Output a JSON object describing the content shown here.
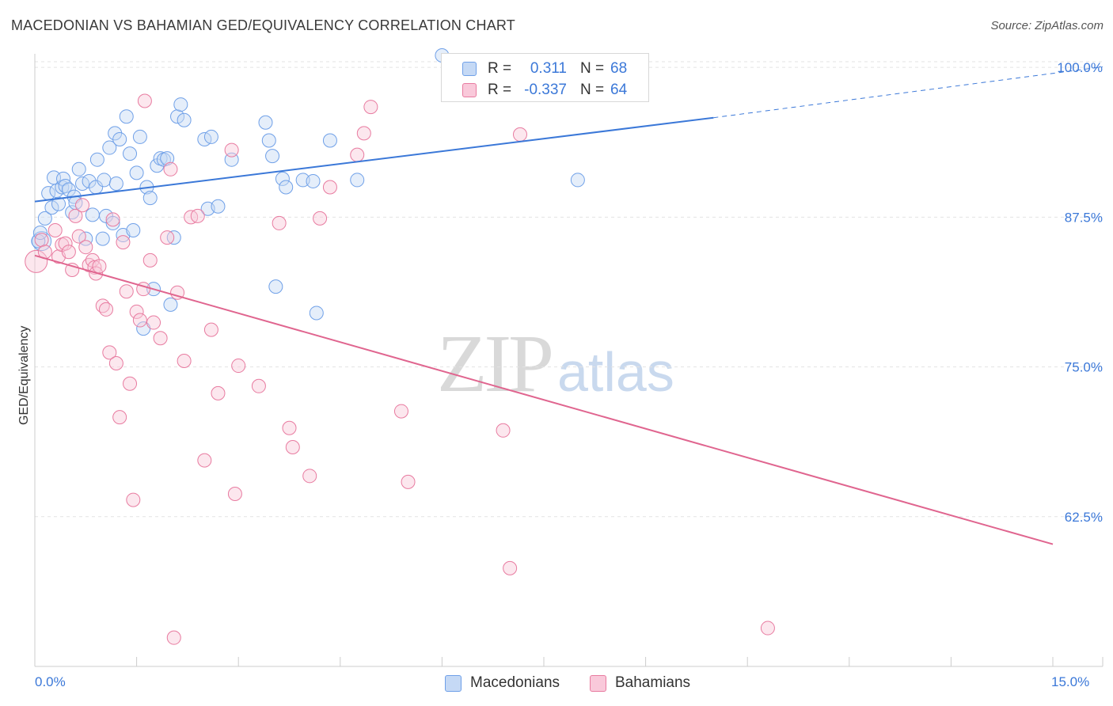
{
  "title": "MACEDONIAN VS BAHAMIAN GED/EQUIVALENCY CORRELATION CHART",
  "source": "Source: ZipAtlas.com",
  "watermark": {
    "zip": "ZIP",
    "atlas": "atlas"
  },
  "legend": {
    "rows": [
      {
        "r_label": "R =",
        "r_value": "0.311",
        "n_label": "N =",
        "n_value": "68",
        "color": "#6fa0e8",
        "fill": "#c5d9f5"
      },
      {
        "r_label": "R =",
        "r_value": "-0.337",
        "n_label": "N =",
        "n_value": "64",
        "color": "#e87ba0",
        "fill": "#f9c9da"
      }
    ]
  },
  "bottom_legend": [
    {
      "label": "Macedonians",
      "color": "#6fa0e8",
      "fill": "#c5d9f5"
    },
    {
      "label": "Bahamians",
      "color": "#e87ba0",
      "fill": "#f9c9da"
    }
  ],
  "chart_data": {
    "type": "scatter",
    "title": "MACEDONIAN VS BAHAMIAN GED/EQUIVALENCY CORRELATION CHART",
    "xlabel": "",
    "ylabel": "GED/Equivalency",
    "xlim": [
      0,
      15
    ],
    "ylim": [
      50,
      101
    ],
    "x_tick_labels": [
      "0.0%",
      "15.0%"
    ],
    "y_ticks": [
      62.5,
      75.0,
      87.5,
      100.0
    ],
    "y_tick_labels": [
      "62.5%",
      "75.0%",
      "87.5%",
      "100.0%"
    ],
    "grid": true,
    "colors": {
      "macedonians": "#3b78d8",
      "bahamians": "#e0658f",
      "tick_text": "#3b78d8"
    },
    "series": [
      {
        "name": "Macedonians",
        "trend": {
          "x0": 0,
          "y0": 88.8,
          "x1": 10.0,
          "y1": 95.8,
          "dashed_to_x": 15.0,
          "dashed_to_y": 99.5
        },
        "points": [
          [
            0.1,
            85.5
          ],
          [
            0.15,
            87.4
          ],
          [
            0.2,
            89.5
          ],
          [
            0.25,
            88.3
          ],
          [
            0.28,
            90.8
          ],
          [
            0.32,
            89.7
          ],
          [
            0.35,
            88.6
          ],
          [
            0.4,
            90.0
          ],
          [
            0.42,
            90.7
          ],
          [
            0.45,
            90.1
          ],
          [
            0.5,
            89.8
          ],
          [
            0.55,
            87.9
          ],
          [
            0.58,
            89.2
          ],
          [
            0.6,
            88.7
          ],
          [
            0.65,
            91.5
          ],
          [
            0.7,
            90.3
          ],
          [
            0.75,
            85.7
          ],
          [
            0.8,
            90.5
          ],
          [
            0.85,
            87.7
          ],
          [
            0.9,
            90.0
          ],
          [
            0.92,
            92.3
          ],
          [
            1.0,
            85.7
          ],
          [
            1.02,
            90.6
          ],
          [
            1.05,
            87.6
          ],
          [
            1.1,
            93.3
          ],
          [
            1.15,
            87.0
          ],
          [
            1.18,
            94.5
          ],
          [
            1.2,
            90.3
          ],
          [
            1.25,
            94.0
          ],
          [
            1.3,
            86.0
          ],
          [
            1.35,
            95.9
          ],
          [
            1.4,
            92.8
          ],
          [
            1.45,
            86.4
          ],
          [
            1.5,
            91.2
          ],
          [
            1.55,
            94.2
          ],
          [
            1.6,
            78.2
          ],
          [
            1.65,
            90.0
          ],
          [
            1.7,
            89.1
          ],
          [
            1.75,
            81.5
          ],
          [
            1.8,
            91.8
          ],
          [
            1.85,
            92.4
          ],
          [
            1.9,
            92.3
          ],
          [
            2.0,
            80.2
          ],
          [
            2.05,
            85.8
          ],
          [
            2.1,
            95.9
          ],
          [
            2.15,
            96.9
          ],
          [
            2.2,
            95.6
          ],
          [
            2.5,
            94.0
          ],
          [
            2.55,
            88.2
          ],
          [
            2.6,
            94.2
          ],
          [
            2.7,
            88.4
          ],
          [
            2.9,
            92.3
          ],
          [
            3.4,
            95.4
          ],
          [
            3.45,
            93.9
          ],
          [
            3.5,
            92.6
          ],
          [
            3.55,
            81.7
          ],
          [
            3.65,
            90.7
          ],
          [
            3.7,
            90.0
          ],
          [
            3.95,
            90.6
          ],
          [
            4.15,
            79.5
          ],
          [
            4.1,
            90.5
          ],
          [
            4.35,
            93.9
          ],
          [
            4.75,
            90.6
          ],
          [
            8.0,
            90.6
          ],
          [
            6.0,
            101.0
          ],
          [
            0.05,
            85.5
          ],
          [
            0.08,
            86.2
          ],
          [
            1.95,
            92.4
          ]
        ]
      },
      {
        "name": "Bahamians",
        "trend": {
          "x0": 0,
          "y0": 84.3,
          "x1": 15.0,
          "y1": 60.2
        },
        "points": [
          [
            0.02,
            83.8
          ],
          [
            0.1,
            85.6
          ],
          [
            0.15,
            84.6
          ],
          [
            0.3,
            86.4
          ],
          [
            0.35,
            84.2
          ],
          [
            0.4,
            85.2
          ],
          [
            0.45,
            85.3
          ],
          [
            0.5,
            84.6
          ],
          [
            0.55,
            83.1
          ],
          [
            0.6,
            87.6
          ],
          [
            0.65,
            85.9
          ],
          [
            0.7,
            88.5
          ],
          [
            0.75,
            85.0
          ],
          [
            0.8,
            83.5
          ],
          [
            0.85,
            83.9
          ],
          [
            0.88,
            83.3
          ],
          [
            0.9,
            82.8
          ],
          [
            0.95,
            83.4
          ],
          [
            1.0,
            80.1
          ],
          [
            1.05,
            79.8
          ],
          [
            1.1,
            76.2
          ],
          [
            1.15,
            87.3
          ],
          [
            1.2,
            75.3
          ],
          [
            1.25,
            70.8
          ],
          [
            1.3,
            85.4
          ],
          [
            1.35,
            81.3
          ],
          [
            1.4,
            73.6
          ],
          [
            1.45,
            63.9
          ],
          [
            1.5,
            79.6
          ],
          [
            1.55,
            78.9
          ],
          [
            1.6,
            81.5
          ],
          [
            1.62,
            97.2
          ],
          [
            1.7,
            83.9
          ],
          [
            1.75,
            78.7
          ],
          [
            1.85,
            77.4
          ],
          [
            1.95,
            85.8
          ],
          [
            2.0,
            91.5
          ],
          [
            2.05,
            52.4
          ],
          [
            2.1,
            81.2
          ],
          [
            2.2,
            75.5
          ],
          [
            2.3,
            87.5
          ],
          [
            2.4,
            87.6
          ],
          [
            2.5,
            67.2
          ],
          [
            2.6,
            78.1
          ],
          [
            2.7,
            72.8
          ],
          [
            2.9,
            93.1
          ],
          [
            2.95,
            64.4
          ],
          [
            3.0,
            75.1
          ],
          [
            3.3,
            73.4
          ],
          [
            3.6,
            87.0
          ],
          [
            3.75,
            69.9
          ],
          [
            3.8,
            68.3
          ],
          [
            4.05,
            65.9
          ],
          [
            4.2,
            87.4
          ],
          [
            4.35,
            90.0
          ],
          [
            4.75,
            92.7
          ],
          [
            4.85,
            94.5
          ],
          [
            4.95,
            96.7
          ],
          [
            5.4,
            71.3
          ],
          [
            5.5,
            65.4
          ],
          [
            6.9,
            69.7
          ],
          [
            7.0,
            58.2
          ],
          [
            7.15,
            94.4
          ],
          [
            10.8,
            53.2
          ]
        ]
      }
    ]
  }
}
